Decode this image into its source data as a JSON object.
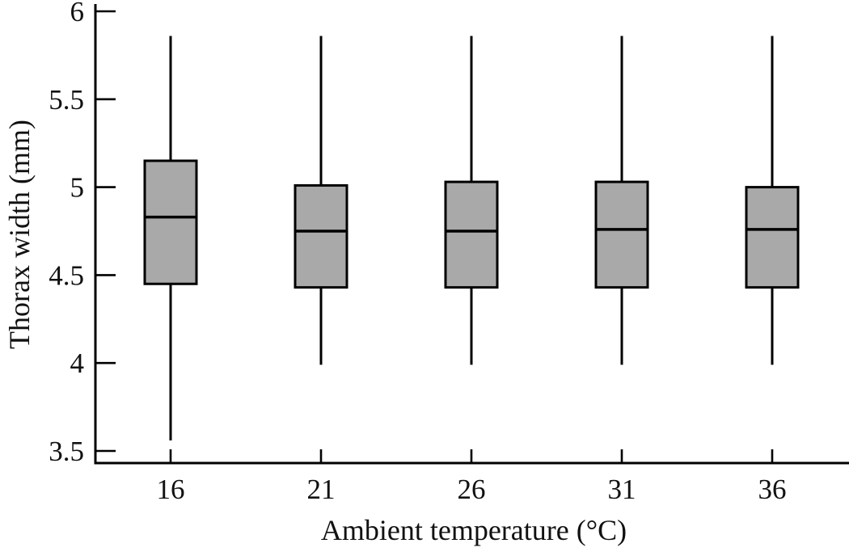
{
  "chart_data": {
    "type": "boxplot",
    "title": "",
    "xlabel": "Ambient temperature (°C)",
    "ylabel": "Thorax width (mm)",
    "categories": [
      "16",
      "21",
      "26",
      "31",
      "36"
    ],
    "ylim": [
      3.5,
      6
    ],
    "y_ticks": [
      6,
      5.5,
      5,
      4.5,
      4,
      3.5
    ],
    "y_tick_labels": [
      "6",
      "5.5",
      "5",
      "4.5",
      "4",
      "3.5"
    ],
    "grid": false,
    "legend": "none",
    "series": [
      {
        "category": "16",
        "whisker_low": 3.56,
        "q1": 4.45,
        "median": 4.83,
        "q3": 5.15,
        "whisker_high": 5.86
      },
      {
        "category": "21",
        "whisker_low": 3.99,
        "q1": 4.43,
        "median": 4.75,
        "q3": 5.01,
        "whisker_high": 5.86
      },
      {
        "category": "26",
        "whisker_low": 3.99,
        "q1": 4.43,
        "median": 4.75,
        "q3": 5.03,
        "whisker_high": 5.86
      },
      {
        "category": "31",
        "whisker_low": 3.99,
        "q1": 4.43,
        "median": 4.76,
        "q3": 5.03,
        "whisker_high": 5.86
      },
      {
        "category": "36",
        "whisker_low": 3.99,
        "q1": 4.43,
        "median": 4.76,
        "q3": 5.0,
        "whisker_high": 5.86
      }
    ],
    "colors": {
      "box_fill": "#a9a9a9",
      "line": "#000000",
      "background": "#ffffff"
    }
  }
}
